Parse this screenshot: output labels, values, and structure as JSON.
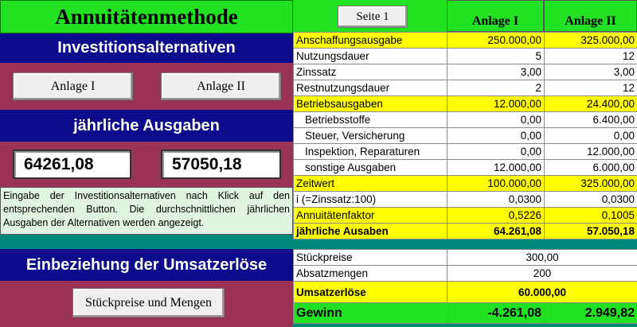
{
  "title": "Annuitätenmethode",
  "page_button": "Seite 1",
  "headers": {
    "col1": "Anlage I",
    "col2": "Anlage II"
  },
  "left": {
    "invest_header": "Investitionsalternativen",
    "btn_anlage1": "Anlage I",
    "btn_anlage2": "Anlage II",
    "ausgaben_header": "jährliche Ausgaben",
    "result1": "64261,08",
    "result2": "57050,18",
    "note": "Eingabe der Investitionsalternativen nach Klick auf den entsprechenden Button. Die durchschnittlichen jährlichen Ausgaben der Alternativen werden angezeigt.",
    "umsatz_header": "Einbeziehung der Umsatzerlöse",
    "btn_stueck": "Stückpreise und Mengen"
  },
  "rows": [
    {
      "label": "Anschaffungsausgabe",
      "v1": "250.000,00",
      "v2": "325.000,00",
      "style": "y"
    },
    {
      "label": "Nutzungsdauer",
      "v1": "5",
      "v2": "12",
      "style": "w"
    },
    {
      "label": "Zinssatz",
      "v1": "3,00",
      "v2": "3,00",
      "style": "w"
    },
    {
      "label": "Restnutzungsdauer",
      "v1": "2",
      "v2": "12",
      "style": "w"
    },
    {
      "label": "Betriebsausgaben",
      "v1": "12.000,00",
      "v2": "24.400,00",
      "style": "y"
    },
    {
      "label": "Betriebsstoffe",
      "v1": "0,00",
      "v2": "6.400,00",
      "style": "w",
      "sub": true
    },
    {
      "label": "Steuer, Versicherung",
      "v1": "0,00",
      "v2": "0,00",
      "style": "w",
      "sub": true
    },
    {
      "label": "Inspektion, Reparaturen",
      "v1": "0,00",
      "v2": "12.000,00",
      "style": "w",
      "sub": true
    },
    {
      "label": "sonstige Ausgaben",
      "v1": "12.000,00",
      "v2": "6.000,00",
      "style": "w",
      "sub": true
    },
    {
      "label": "Zeitwert",
      "v1": "100.000,00",
      "v2": "325.000,00",
      "style": "y"
    },
    {
      "label": "i (=Zinssatz:100)",
      "v1": "0,0300",
      "v2": "0,0300",
      "style": "w"
    },
    {
      "label": "Annuitätenfaktor",
      "v1": "0,5226",
      "v2": "0,1005",
      "style": "y"
    },
    {
      "label": "jährliche Ausaben",
      "v1": "64.261,08",
      "v2": "57.050,18",
      "style": "y",
      "bold": true
    }
  ],
  "bottom": {
    "stueckpreise_label": "Stückpreise",
    "stueckpreise_value": "300,00",
    "absatz_label": "Absatzmengen",
    "absatz_value": "200",
    "umsatz_label": "Umsatzerlöse",
    "umsatz_value": "60.000,00",
    "gewinn_label": "Gewinn",
    "gewinn_v1": "-4.261,08",
    "gewinn_v2": "2.949,82"
  }
}
